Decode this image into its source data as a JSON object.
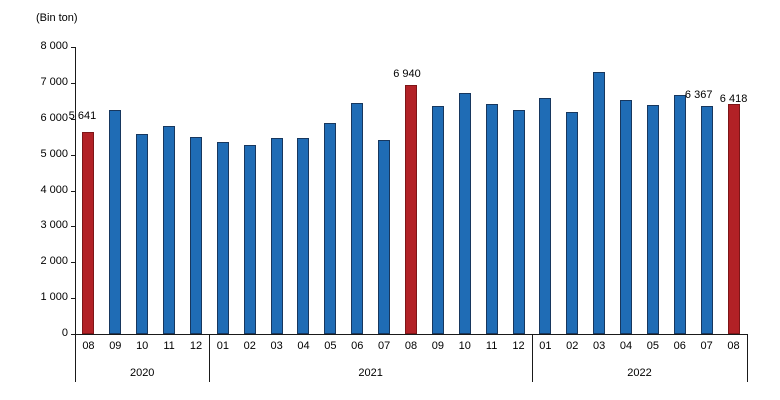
{
  "chart_data": {
    "type": "bar",
    "title": "",
    "unit_label": "(Bin ton)",
    "xlabel": "",
    "ylabel": "",
    "ylim": [
      0,
      8000
    ],
    "y_tick_step": 1000,
    "y_tick_labels": [
      "0",
      "1 000",
      "2 000",
      "3 000",
      "4 000",
      "5 000",
      "6 000",
      "7 000",
      "8 000"
    ],
    "grid": false,
    "legend_position": "none",
    "highlight_meaning": "August months highlighted in red with data labels",
    "colors": {
      "bar": "#1F6CB5",
      "bar_border": "#17375E",
      "highlight": "#B22126",
      "highlight_border": "#7D1517",
      "axis": "#1A1A1A",
      "text": "#000000",
      "background": "#FFFFFF"
    },
    "x_groups": [
      {
        "label": "2020"
      },
      {
        "label": "2021"
      },
      {
        "label": "2022"
      }
    ],
    "bars": [
      {
        "year": "2020",
        "month": "08",
        "value": 5641,
        "highlight": true,
        "label": "5 641",
        "label_dx": -6,
        "label_dy": -22
      },
      {
        "year": "2020",
        "month": "09",
        "value": 6240,
        "highlight": false
      },
      {
        "year": "2020",
        "month": "10",
        "value": 5570,
        "highlight": false
      },
      {
        "year": "2020",
        "month": "11",
        "value": 5810,
        "highlight": false
      },
      {
        "year": "2020",
        "month": "12",
        "value": 5500,
        "highlight": false
      },
      {
        "year": "2021",
        "month": "01",
        "value": 5360,
        "highlight": false
      },
      {
        "year": "2021",
        "month": "02",
        "value": 5270,
        "highlight": false
      },
      {
        "year": "2021",
        "month": "03",
        "value": 5450,
        "highlight": false
      },
      {
        "year": "2021",
        "month": "04",
        "value": 5470,
        "highlight": false
      },
      {
        "year": "2021",
        "month": "05",
        "value": 5870,
        "highlight": false
      },
      {
        "year": "2021",
        "month": "06",
        "value": 6450,
        "highlight": false
      },
      {
        "year": "2021",
        "month": "07",
        "value": 5400,
        "highlight": false
      },
      {
        "year": "2021",
        "month": "08",
        "value": 6940,
        "highlight": true,
        "label": "6 940",
        "label_dx": -4,
        "label_dy": -17
      },
      {
        "year": "2021",
        "month": "09",
        "value": 6360,
        "highlight": false
      },
      {
        "year": "2021",
        "month": "10",
        "value": 6730,
        "highlight": false
      },
      {
        "year": "2021",
        "month": "11",
        "value": 6410,
        "highlight": false
      },
      {
        "year": "2021",
        "month": "12",
        "value": 6240,
        "highlight": false
      },
      {
        "year": "2022",
        "month": "01",
        "value": 6590,
        "highlight": false
      },
      {
        "year": "2022",
        "month": "02",
        "value": 6180,
        "highlight": false
      },
      {
        "year": "2022",
        "month": "03",
        "value": 7310,
        "highlight": false
      },
      {
        "year": "2022",
        "month": "04",
        "value": 6520,
        "highlight": false
      },
      {
        "year": "2022",
        "month": "05",
        "value": 6370,
        "highlight": false
      },
      {
        "year": "2022",
        "month": "06",
        "value": 6660,
        "highlight": false
      },
      {
        "year": "2022",
        "month": "07",
        "value": 6367,
        "highlight": false,
        "label": "6 367",
        "label_dx": -8,
        "label_dy": -17
      },
      {
        "year": "2022",
        "month": "08",
        "value": 6418,
        "highlight": true,
        "label": "6 418",
        "label_dx": 0,
        "label_dy": -11
      }
    ]
  }
}
